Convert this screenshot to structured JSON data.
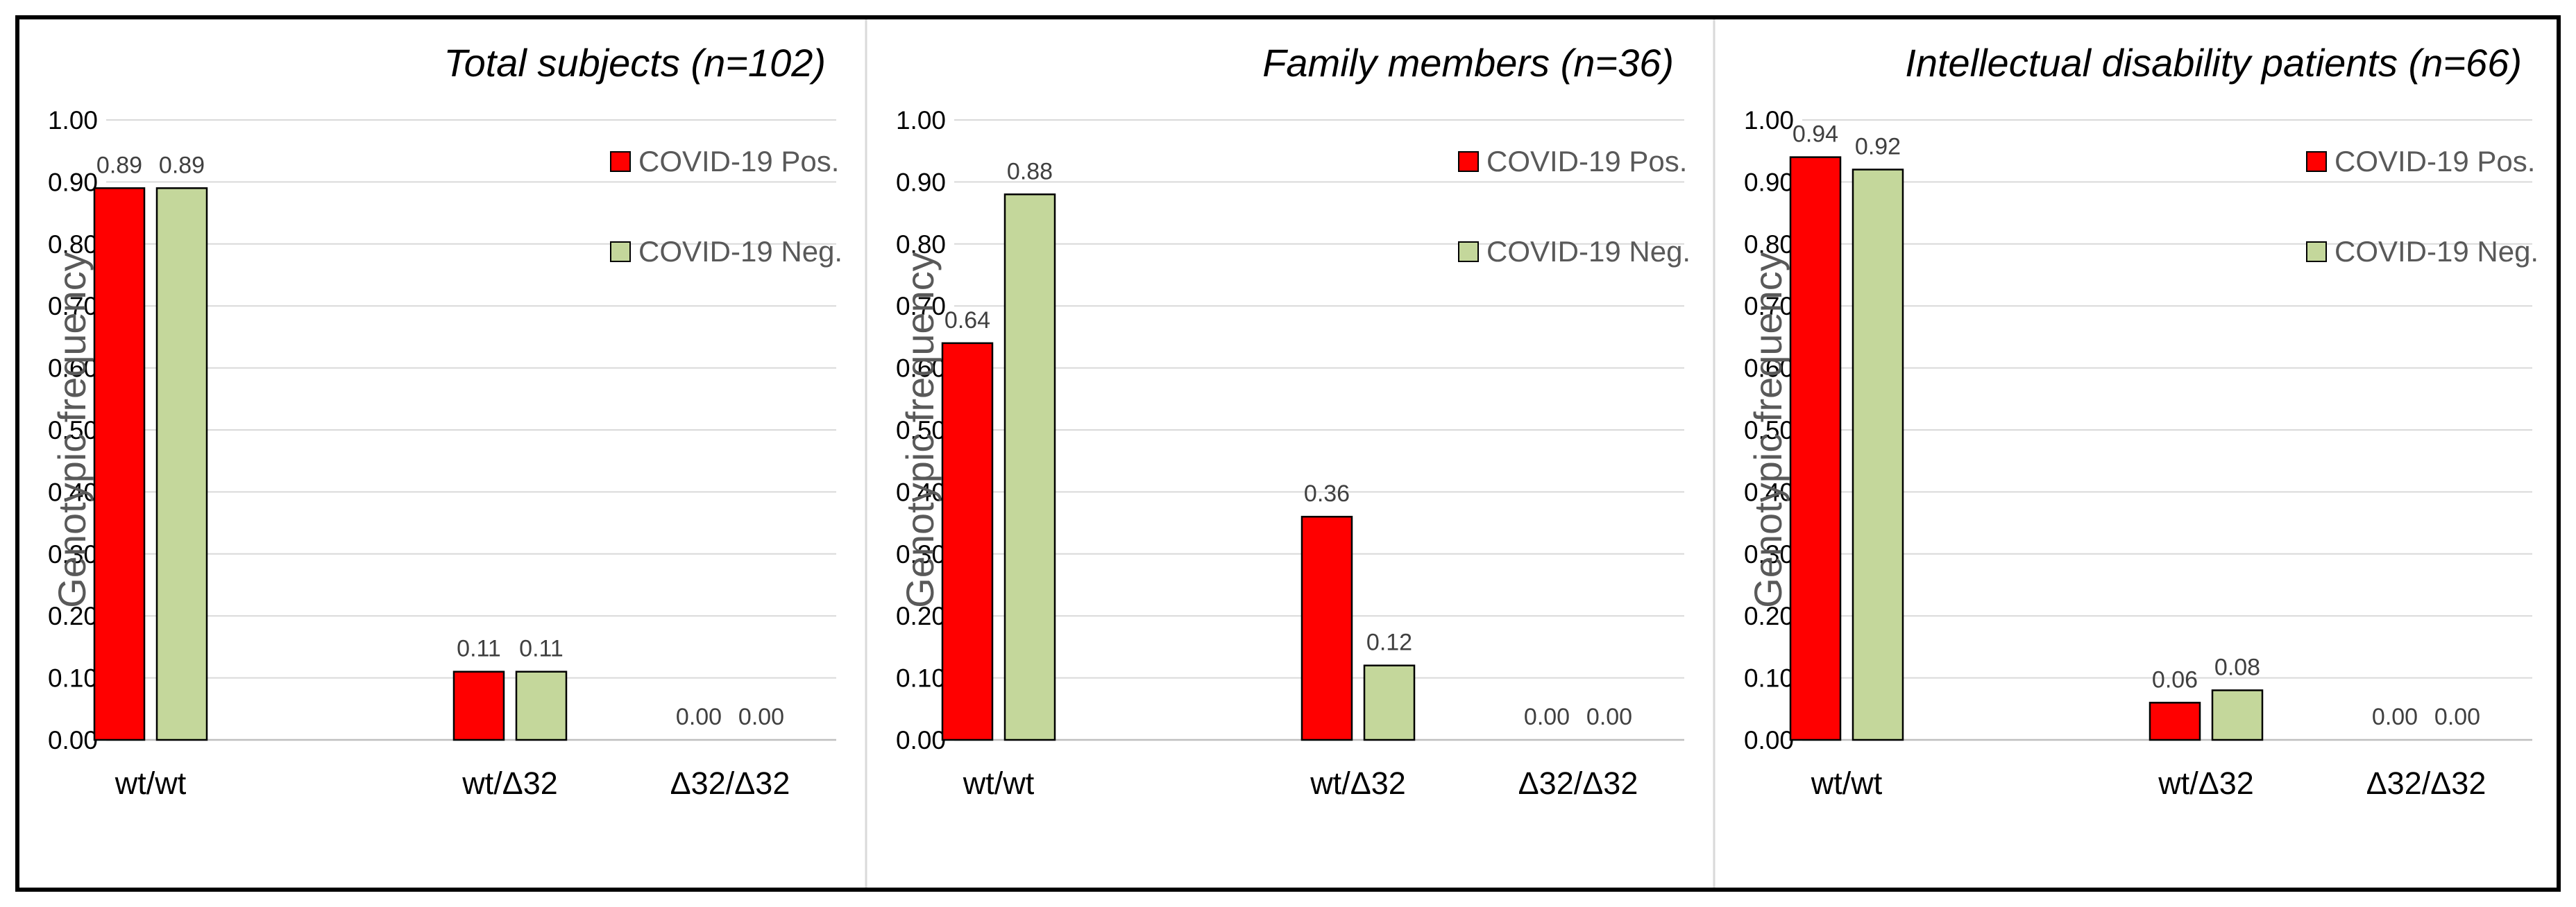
{
  "chart_data": [
    {
      "type": "bar",
      "title": "Total subjects (n=102)",
      "xlabel": "",
      "ylabel": "Genotypic frequency",
      "ylim": [
        0,
        1
      ],
      "yticks": [
        "0.00",
        "0.10",
        "0.20",
        "0.30",
        "0.40",
        "0.50",
        "0.60",
        "0.70",
        "0.80",
        "0.90",
        "1.00"
      ],
      "categories": [
        "wt/wt",
        "wt/Δ32",
        "Δ32/Δ32"
      ],
      "legend_position": "top-right",
      "series": [
        {
          "name": "COVID-19 Pos.",
          "color": "#ff0000",
          "values": [
            0.89,
            0.11,
            0.0
          ],
          "labels": [
            "0.89",
            "0.11",
            "0.00"
          ]
        },
        {
          "name": "COVID-19 Neg.",
          "color": "#c4d79b",
          "values": [
            0.89,
            0.11,
            0.0
          ],
          "labels": [
            "0.89",
            "0.11",
            "0.00"
          ]
        }
      ]
    },
    {
      "type": "bar",
      "title": "Family members (n=36)",
      "xlabel": "",
      "ylabel": "Genotypic frequency",
      "ylim": [
        0,
        1
      ],
      "yticks": [
        "0.00",
        "0.10",
        "0.20",
        "0.30",
        "0.40",
        "0.50",
        "0.60",
        "0.70",
        "0.80",
        "0.90",
        "1.00"
      ],
      "categories": [
        "wt/wt",
        "wt/Δ32",
        "Δ32/Δ32"
      ],
      "legend_position": "top-right",
      "series": [
        {
          "name": "COVID-19 Pos.",
          "color": "#ff0000",
          "values": [
            0.64,
            0.36,
            0.0
          ],
          "labels": [
            "0.64",
            "0.36",
            "0.00"
          ]
        },
        {
          "name": "COVID-19 Neg.",
          "color": "#c4d79b",
          "values": [
            0.88,
            0.12,
            0.0
          ],
          "labels": [
            "0.88",
            "0.12",
            "0.00"
          ]
        }
      ]
    },
    {
      "type": "bar",
      "title": "Intellectual disability patients (n=66)",
      "xlabel": "",
      "ylabel": "Genotypic frequency",
      "ylim": [
        0,
        1
      ],
      "yticks": [
        "0.00",
        "0.10",
        "0.20",
        "0.30",
        "0.40",
        "0.50",
        "0.60",
        "0.70",
        "0.80",
        "0.90",
        "1.00"
      ],
      "categories": [
        "wt/wt",
        "wt/Δ32",
        "Δ32/Δ32"
      ],
      "legend_position": "top-right",
      "series": [
        {
          "name": "COVID-19 Pos.",
          "color": "#ff0000",
          "values": [
            0.94,
            0.06,
            0.0
          ],
          "labels": [
            "0.94",
            "0.06",
            "0.00"
          ]
        },
        {
          "name": "COVID-19 Neg.",
          "color": "#c4d79b",
          "values": [
            0.92,
            0.08,
            0.0
          ],
          "labels": [
            "0.92",
            "0.08",
            "0.00"
          ]
        }
      ]
    }
  ]
}
